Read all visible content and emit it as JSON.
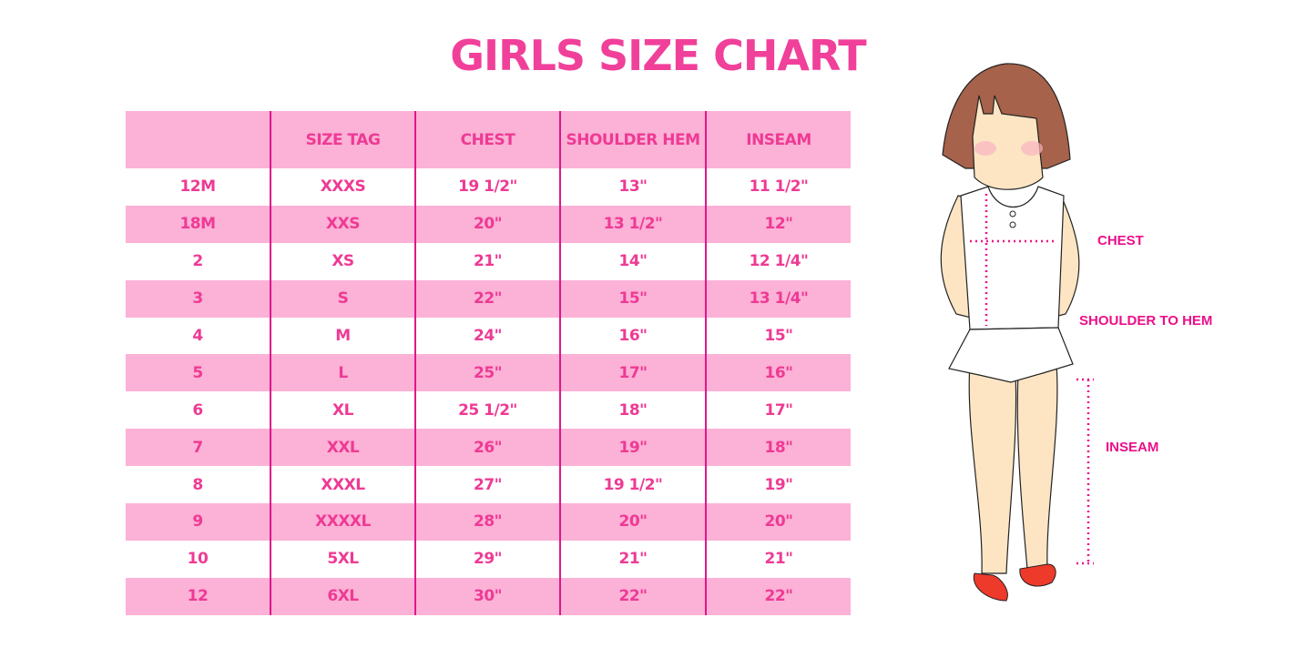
{
  "title": "GIRLS SIZE CHART",
  "table": {
    "headers": [
      "",
      "SIZE TAG",
      "CHEST",
      "SHOULDER HEM",
      "INSEAM"
    ],
    "rows": [
      [
        "12M",
        "XXXS",
        "19 1/2\"",
        "13\"",
        "11 1/2\""
      ],
      [
        "18M",
        "XXS",
        "20\"",
        "13 1/2\"",
        "12\""
      ],
      [
        "2",
        "XS",
        "21\"",
        "14\"",
        "12 1/4\""
      ],
      [
        "3",
        "S",
        "22\"",
        "15\"",
        "13 1/4\""
      ],
      [
        "4",
        "M",
        "24\"",
        "16\"",
        "15\""
      ],
      [
        "5",
        "L",
        "25\"",
        "17\"",
        "16\""
      ],
      [
        "6",
        "XL",
        "25 1/2\"",
        "18\"",
        "17\""
      ],
      [
        "7",
        "XXL",
        "26\"",
        "19\"",
        "18\""
      ],
      [
        "8",
        "XXXL",
        "27\"",
        "19 1/2\"",
        "19\""
      ],
      [
        "9",
        "XXXXL",
        "28\"",
        "20\"",
        "20\""
      ],
      [
        "10",
        "5XL",
        "29\"",
        "21\"",
        "21\""
      ],
      [
        "12",
        "6XL",
        "30\"",
        "22\"",
        "22\""
      ]
    ]
  },
  "figure": {
    "labels": {
      "chest": "CHEST",
      "shoulder_to_hem": "SHOULDER TO HEM",
      "inseam": "INSEAM"
    }
  },
  "colors": {
    "accent": "#ee3a94",
    "row_pink": "#fcb1d6",
    "divider": "#e0168a"
  }
}
